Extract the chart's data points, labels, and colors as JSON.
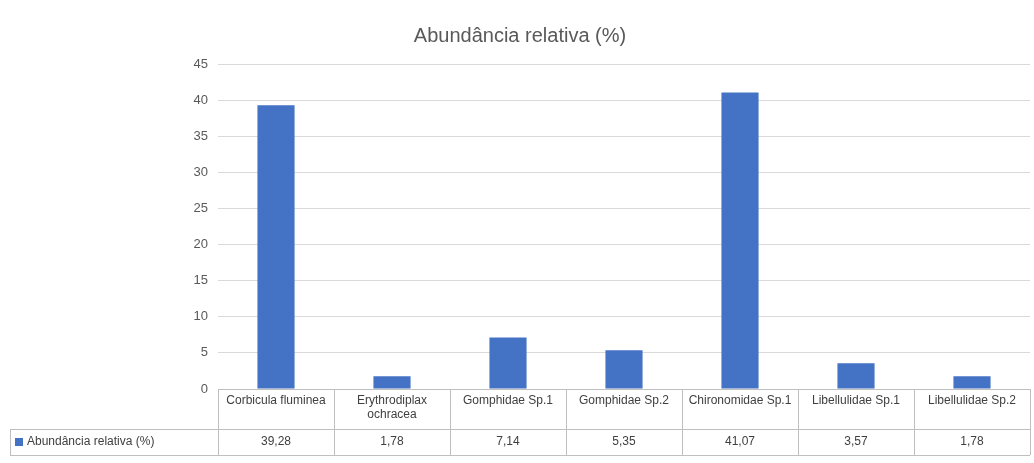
{
  "chart_data": {
    "type": "bar",
    "title": "Abundância relativa (%)",
    "categories": [
      "Corbicula fluminea",
      "Erythrodiplax ochracea",
      "Gomphidae Sp.1",
      "Gomphidae Sp.2",
      "Chironomidae Sp.1",
      "Libellulidae Sp.1",
      "Libellulidae Sp.2"
    ],
    "series": [
      {
        "name": "Abundância relativa (%)",
        "color": "#4472c4",
        "values": [
          39.28,
          1.78,
          7.14,
          5.35,
          41.07,
          3.57,
          1.78
        ],
        "value_labels": [
          "39,28",
          "1,78",
          "7,14",
          "5,35",
          "41,07",
          "3,57",
          "1,78"
        ]
      }
    ],
    "ylim": [
      0,
      45
    ],
    "yticks": [
      0,
      5,
      10,
      15,
      20,
      25,
      30,
      35,
      40,
      45
    ],
    "grid": "y",
    "legend": "bottom"
  }
}
